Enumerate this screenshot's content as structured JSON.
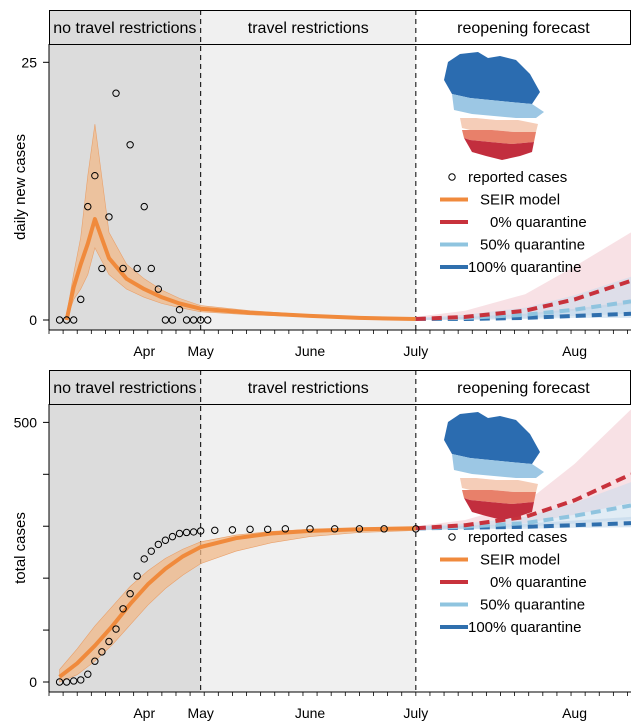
{
  "colors": {
    "band1_bg": "#dcdcdc",
    "band2_bg": "#f0f0f0",
    "band3_bg": "#ffffff",
    "seir": "#f08a3c",
    "seir_band": "#f2b989",
    "q0": "#c8323c",
    "q0_band": "#f3c9cf",
    "q50": "#8fc4df",
    "q100": "#2f6fad",
    "map_canada_dark": "#2b6cb0",
    "map_canada_light": "#9cc7e4",
    "map_us_light": "#f5cdb8",
    "map_us_mid": "#e8806a",
    "map_us_dark": "#c22e3e"
  },
  "icons": [
    "north-america-map-icon"
  ],
  "chart_data": [
    {
      "type": "line",
      "ylabel": "daily new cases",
      "ylim": [
        0,
        26
      ],
      "yticks": [
        0,
        25
      ],
      "x_axis": {
        "unit": "day",
        "range": [
          "2020-03-19",
          "2020-08-31"
        ],
        "tick_labels": [
          "Apr",
          "May",
          "June",
          "July",
          "Aug"
        ]
      },
      "phases": [
        {
          "label": "no travel restrictions",
          "start": "2020-03-19",
          "end": "2020-05-01"
        },
        {
          "label": "travel restrictions",
          "start": "2020-05-01",
          "end": "2020-07-01"
        },
        {
          "label": "reopening forecast",
          "start": "2020-07-01",
          "end": "2020-08-31"
        }
      ],
      "legend": {
        "placement": "right",
        "entries": [
          "reported cases",
          "SEIR model",
          "0% quarantine",
          "50% quarantine",
          "100% quarantine"
        ]
      },
      "reported_cases": {
        "x": [
          "2020-03-22",
          "2020-03-24",
          "2020-03-26",
          "2020-03-28",
          "2020-03-30",
          "2020-04-01",
          "2020-04-03",
          "2020-04-05",
          "2020-04-07",
          "2020-04-09",
          "2020-04-11",
          "2020-04-13",
          "2020-04-15",
          "2020-04-17",
          "2020-04-19",
          "2020-04-21",
          "2020-04-23",
          "2020-04-25",
          "2020-04-27",
          "2020-04-29",
          "2020-05-01",
          "2020-05-03"
        ],
        "y": [
          0,
          0,
          0,
          2,
          11,
          14,
          5,
          10,
          22,
          5,
          17,
          5,
          11,
          5,
          3,
          0,
          0,
          1,
          0,
          0,
          0,
          0
        ]
      },
      "seir_model": {
        "x": [
          "2020-03-24",
          "2020-03-26",
          "2020-03-28",
          "2020-03-30",
          "2020-04-01",
          "2020-04-05",
          "2020-04-10",
          "2020-04-15",
          "2020-04-20",
          "2020-04-25",
          "2020-05-01",
          "2020-05-15",
          "2020-06-01",
          "2020-06-15",
          "2020-07-01"
        ],
        "y": [
          0,
          3.2,
          5.4,
          7.4,
          9.8,
          6.0,
          4.0,
          3.0,
          2.2,
          1.6,
          1.1,
          0.7,
          0.4,
          0.2,
          0.1
        ],
        "y_low": [
          0,
          2,
          3,
          4.4,
          7.0,
          4.4,
          3.0,
          2.2,
          1.6,
          1.2,
          0.8,
          0.5,
          0.3,
          0.1,
          0
        ],
        "y_high": [
          0.5,
          4.5,
          8,
          14,
          19,
          8.5,
          5.4,
          4.0,
          2.9,
          2.1,
          1.4,
          0.9,
          0.5,
          0.3,
          0.2
        ]
      },
      "forecasts": [
        {
          "name": "0% quarantine",
          "x": [
            "2020-07-01",
            "2020-07-15",
            "2020-08-01",
            "2020-08-15",
            "2020-08-31"
          ],
          "y": [
            0.1,
            0.3,
            0.9,
            2.0,
            3.8
          ],
          "y_low": [
            0,
            0.1,
            0.4,
            0.9,
            1.5
          ],
          "y_high": [
            0.3,
            0.9,
            2.5,
            5.2,
            8.5
          ]
        },
        {
          "name": "50% quarantine",
          "x": [
            "2020-07-01",
            "2020-07-15",
            "2020-08-01",
            "2020-08-15",
            "2020-08-31"
          ],
          "y": [
            0.1,
            0.2,
            0.5,
            1.0,
            1.8
          ],
          "y_low": [
            0,
            0.1,
            0.2,
            0.4,
            0.6
          ],
          "y_high": [
            0.2,
            0.5,
            1.2,
            2.4,
            4.2
          ]
        },
        {
          "name": "100% quarantine",
          "x": [
            "2020-07-01",
            "2020-07-15",
            "2020-08-01",
            "2020-08-15",
            "2020-08-31"
          ],
          "y": [
            0.1,
            0.1,
            0.2,
            0.4,
            0.6
          ],
          "y_low": [
            0,
            0,
            0.1,
            0.2,
            0.2
          ],
          "y_high": [
            0.2,
            0.3,
            0.6,
            1.1,
            1.8
          ]
        }
      ]
    },
    {
      "type": "line",
      "ylabel": "total cases",
      "ylim": [
        0,
        520
      ],
      "yticks": [
        0,
        100,
        200,
        300,
        400,
        500
      ],
      "ytick_labels": [
        "0",
        "",
        "",
        "",
        "",
        "500"
      ],
      "x_axis": {
        "unit": "day",
        "range": [
          "2020-03-19",
          "2020-08-31"
        ],
        "tick_labels": [
          "Apr",
          "May",
          "June",
          "July",
          "Aug"
        ]
      },
      "phases": [
        {
          "label": "no travel restrictions",
          "start": "2020-03-19",
          "end": "2020-05-01"
        },
        {
          "label": "travel restrictions",
          "start": "2020-05-01",
          "end": "2020-07-01"
        },
        {
          "label": "reopening forecast",
          "start": "2020-07-01",
          "end": "2020-08-31"
        }
      ],
      "legend": {
        "placement": "right",
        "entries": [
          "reported cases",
          "SEIR model",
          "0% quarantine",
          "50% quarantine",
          "100% quarantine"
        ]
      },
      "reported_cases": {
        "x": [
          "2020-03-22",
          "2020-03-24",
          "2020-03-26",
          "2020-03-28",
          "2020-03-30",
          "2020-04-01",
          "2020-04-03",
          "2020-04-05",
          "2020-04-07",
          "2020-04-09",
          "2020-04-11",
          "2020-04-13",
          "2020-04-15",
          "2020-04-17",
          "2020-04-19",
          "2020-04-21",
          "2020-04-23",
          "2020-04-25",
          "2020-04-27",
          "2020-04-29",
          "2020-05-01",
          "2020-05-05",
          "2020-05-10",
          "2020-05-15",
          "2020-05-20",
          "2020-05-25",
          "2020-06-01",
          "2020-06-08",
          "2020-06-15",
          "2020-06-22",
          "2020-07-01"
        ],
        "y": [
          0,
          0,
          2,
          4,
          15,
          40,
          58,
          78,
          102,
          141,
          170,
          204,
          237,
          252,
          265,
          273,
          280,
          286,
          288,
          289,
          291,
          292,
          293,
          294,
          294,
          295,
          295,
          295,
          295,
          295,
          295
        ]
      },
      "seir_model": {
        "x": [
          "2020-03-22",
          "2020-03-27",
          "2020-04-01",
          "2020-04-06",
          "2020-04-11",
          "2020-04-16",
          "2020-04-21",
          "2020-04-26",
          "2020-05-01",
          "2020-05-11",
          "2020-05-21",
          "2020-06-01",
          "2020-06-15",
          "2020-07-01"
        ],
        "y": [
          10,
          36,
          70,
          108,
          150,
          188,
          218,
          242,
          260,
          277,
          286,
          291,
          294,
          296
        ],
        "y_low": [
          0,
          14,
          40,
          72,
          110,
          148,
          180,
          206,
          228,
          252,
          268,
          280,
          288,
          292
        ],
        "y_high": [
          24,
          64,
          108,
          146,
          184,
          214,
          238,
          256,
          270,
          283,
          290,
          294,
          296,
          298
        ]
      },
      "forecasts": [
        {
          "name": "0% quarantine",
          "x": [
            "2020-07-01",
            "2020-07-15",
            "2020-08-01",
            "2020-08-15",
            "2020-08-31"
          ],
          "y": [
            296,
            302,
            318,
            350,
            400
          ],
          "y_low": [
            292,
            297,
            306,
            322,
            345
          ],
          "y_high": [
            300,
            312,
            345,
            420,
            525
          ]
        },
        {
          "name": "50% quarantine",
          "x": [
            "2020-07-01",
            "2020-07-15",
            "2020-08-01",
            "2020-08-15",
            "2020-08-31"
          ],
          "y": [
            296,
            299,
            306,
            320,
            340
          ],
          "y_low": [
            292,
            295,
            299,
            305,
            313
          ],
          "y_high": [
            300,
            305,
            318,
            345,
            385
          ]
        },
        {
          "name": "100% quarantine",
          "x": [
            "2020-07-01",
            "2020-07-15",
            "2020-08-01",
            "2020-08-15",
            "2020-08-31"
          ],
          "y": [
            296,
            297,
            299,
            302,
            306
          ],
          "y_low": [
            292,
            294,
            295,
            297,
            298
          ],
          "y_high": [
            300,
            301,
            305,
            311,
            318
          ]
        }
      ]
    }
  ]
}
